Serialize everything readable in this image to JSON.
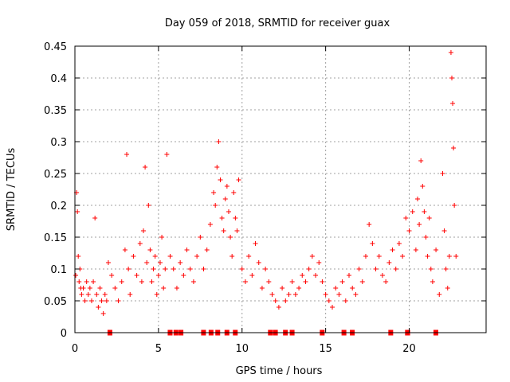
{
  "chart_data": {
    "type": "scatter",
    "title": "Day 059 of 2018, SRMTID for receiver guax",
    "xlabel": "GPS time / hours",
    "ylabel": "SRMTID / TECUs",
    "xlim": [
      0,
      24.6
    ],
    "ylim": [
      0,
      0.45
    ],
    "x_ticks": [
      0,
      5,
      10,
      15,
      20
    ],
    "y_ticks": [
      0,
      0.05,
      0.1,
      0.15,
      0.2,
      0.25,
      0.3,
      0.35,
      0.4,
      0.45
    ],
    "x_tick_labels": [
      "0",
      "5",
      "10",
      "15",
      "20"
    ],
    "y_tick_labels": [
      "0",
      "0.05",
      "0.1",
      "0.15",
      "0.2",
      "0.25",
      "0.3",
      "0.35",
      "0.4",
      "0.45"
    ],
    "grid": true,
    "marker": "+",
    "color": "#ff0000",
    "gap_marker": "square",
    "baseline_segments": [
      [
        2.0,
        2.1
      ],
      [
        5.6,
        5.8
      ],
      [
        5.95,
        6.05
      ],
      [
        6.25,
        6.35
      ],
      [
        7.6,
        7.7
      ],
      [
        8.05,
        8.15
      ],
      [
        8.45,
        8.55
      ],
      [
        9.0,
        9.1
      ],
      [
        9.5,
        9.6
      ],
      [
        11.6,
        11.7
      ],
      [
        11.9,
        12.05
      ],
      [
        12.5,
        12.6
      ],
      [
        12.9,
        13.0
      ],
      [
        14.7,
        14.8
      ],
      [
        16.0,
        16.15
      ],
      [
        16.5,
        16.6
      ],
      [
        18.8,
        18.95
      ],
      [
        19.8,
        20.1
      ],
      [
        21.5,
        21.75
      ]
    ],
    "series": [
      {
        "name": "SRMTID",
        "x": [
          0.05,
          0.1,
          0.15,
          0.2,
          0.25,
          0.3,
          0.35,
          0.4,
          0.5,
          0.6,
          0.7,
          0.8,
          0.9,
          1.0,
          1.1,
          1.2,
          1.3,
          1.4,
          1.5,
          1.6,
          1.7,
          1.8,
          1.9,
          2.0,
          2.2,
          2.4,
          2.6,
          2.8,
          3.0,
          3.1,
          3.2,
          3.3,
          3.5,
          3.7,
          3.9,
          4.0,
          4.1,
          4.2,
          4.3,
          4.4,
          4.5,
          4.6,
          4.7,
          4.8,
          4.9,
          5.0,
          5.1,
          5.2,
          5.3,
          5.4,
          5.5,
          5.7,
          5.9,
          6.1,
          6.3,
          6.5,
          6.7,
          6.9,
          7.1,
          7.3,
          7.5,
          7.7,
          7.9,
          8.1,
          8.3,
          8.4,
          8.5,
          8.6,
          8.7,
          8.8,
          8.9,
          9.0,
          9.1,
          9.2,
          9.3,
          9.4,
          9.5,
          9.6,
          9.7,
          9.8,
          10.0,
          10.2,
          10.4,
          10.6,
          10.8,
          11.0,
          11.2,
          11.4,
          11.6,
          11.8,
          12.0,
          12.2,
          12.4,
          12.6,
          12.8,
          13.0,
          13.2,
          13.4,
          13.6,
          13.8,
          14.0,
          14.2,
          14.4,
          14.6,
          14.8,
          15.0,
          15.2,
          15.4,
          15.6,
          15.8,
          16.0,
          16.2,
          16.4,
          16.6,
          16.8,
          17.0,
          17.2,
          17.4,
          17.6,
          17.8,
          18.0,
          18.2,
          18.4,
          18.6,
          18.8,
          19.0,
          19.2,
          19.4,
          19.6,
          19.8,
          20.0,
          20.2,
          20.4,
          20.5,
          20.6,
          20.7,
          20.8,
          20.9,
          21.0,
          21.1,
          21.2,
          21.3,
          21.4,
          21.6,
          21.8,
          22.0,
          22.1,
          22.2,
          22.3,
          22.4,
          22.5,
          22.55,
          22.6,
          22.65,
          22.7,
          22.8
        ],
        "y": [
          0.09,
          0.22,
          0.19,
          0.12,
          0.08,
          0.1,
          0.07,
          0.06,
          0.07,
          0.05,
          0.08,
          0.06,
          0.07,
          0.05,
          0.08,
          0.18,
          0.06,
          0.04,
          0.07,
          0.05,
          0.03,
          0.06,
          0.05,
          0.11,
          0.09,
          0.07,
          0.05,
          0.08,
          0.13,
          0.28,
          0.1,
          0.06,
          0.12,
          0.09,
          0.14,
          0.08,
          0.16,
          0.26,
          0.11,
          0.2,
          0.13,
          0.08,
          0.1,
          0.12,
          0.06,
          0.09,
          0.11,
          0.15,
          0.07,
          0.1,
          0.28,
          0.12,
          0.1,
          0.07,
          0.11,
          0.09,
          0.13,
          0.1,
          0.08,
          0.12,
          0.15,
          0.1,
          0.13,
          0.17,
          0.22,
          0.2,
          0.26,
          0.3,
          0.24,
          0.18,
          0.16,
          0.21,
          0.23,
          0.19,
          0.15,
          0.12,
          0.22,
          0.18,
          0.16,
          0.24,
          0.1,
          0.08,
          0.12,
          0.09,
          0.14,
          0.11,
          0.07,
          0.1,
          0.08,
          0.06,
          0.05,
          0.04,
          0.07,
          0.05,
          0.06,
          0.08,
          0.06,
          0.07,
          0.09,
          0.08,
          0.1,
          0.12,
          0.09,
          0.11,
          0.08,
          0.06,
          0.05,
          0.04,
          0.07,
          0.06,
          0.08,
          0.05,
          0.09,
          0.07,
          0.06,
          0.1,
          0.08,
          0.12,
          0.17,
          0.14,
          0.1,
          0.12,
          0.09,
          0.08,
          0.11,
          0.13,
          0.1,
          0.14,
          0.12,
          0.18,
          0.16,
          0.19,
          0.13,
          0.21,
          0.17,
          0.27,
          0.23,
          0.19,
          0.15,
          0.12,
          0.18,
          0.1,
          0.08,
          0.13,
          0.06,
          0.25,
          0.16,
          0.1,
          0.07,
          0.12,
          0.44,
          0.4,
          0.36,
          0.29,
          0.2,
          0.12
        ]
      }
    ]
  }
}
